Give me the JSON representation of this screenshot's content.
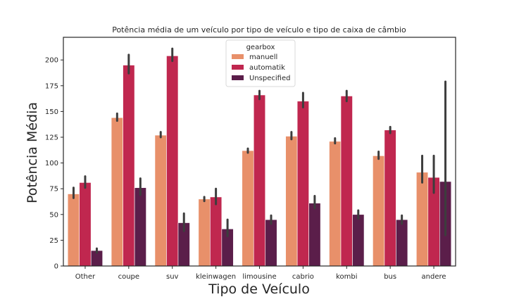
{
  "chart_data": {
    "type": "bar",
    "title": "Potência média de um veículo por tipo de veículo e tipo de caixa de câmbio",
    "xlabel": "Tipo de Veículo",
    "ylabel": "Potência Média",
    "ylim": [
      0,
      222
    ],
    "yticks": [
      0,
      25,
      50,
      75,
      100,
      125,
      150,
      175,
      200
    ],
    "categories": [
      "Other",
      "coupe",
      "suv",
      "kleinwagen",
      "limousine",
      "cabrio",
      "kombi",
      "bus",
      "andere"
    ],
    "legend": {
      "title": "gearbox",
      "placement": "top-center"
    },
    "grid": false,
    "series": [
      {
        "name": "manuell",
        "color": "#e8906a",
        "values": [
          70,
          144,
          127,
          65,
          112,
          126,
          121,
          107,
          91
        ],
        "ci_low": [
          66,
          141,
          125,
          63,
          110,
          123,
          119,
          104,
          81
        ],
        "ci_high": [
          76,
          148,
          130,
          67,
          114,
          130,
          124,
          111,
          107
        ]
      },
      {
        "name": "automatik",
        "color": "#c0274f",
        "values": [
          81,
          195,
          204,
          67,
          166,
          160,
          165,
          132,
          86
        ],
        "ci_low": [
          76,
          187,
          199,
          60,
          162,
          154,
          160,
          129,
          71
        ],
        "ci_high": [
          87,
          205,
          211,
          75,
          170,
          168,
          170,
          135,
          107
        ]
      },
      {
        "name": "Unspecified",
        "color": "#5b1e4a",
        "values": [
          15,
          76,
          42,
          36,
          45,
          61,
          50,
          45,
          82
        ],
        "ci_low": [
          13,
          69,
          34,
          29,
          41,
          56,
          46,
          41,
          30
        ],
        "ci_high": [
          17,
          85,
          51,
          45,
          49,
          68,
          54,
          49,
          179
        ]
      }
    ]
  }
}
